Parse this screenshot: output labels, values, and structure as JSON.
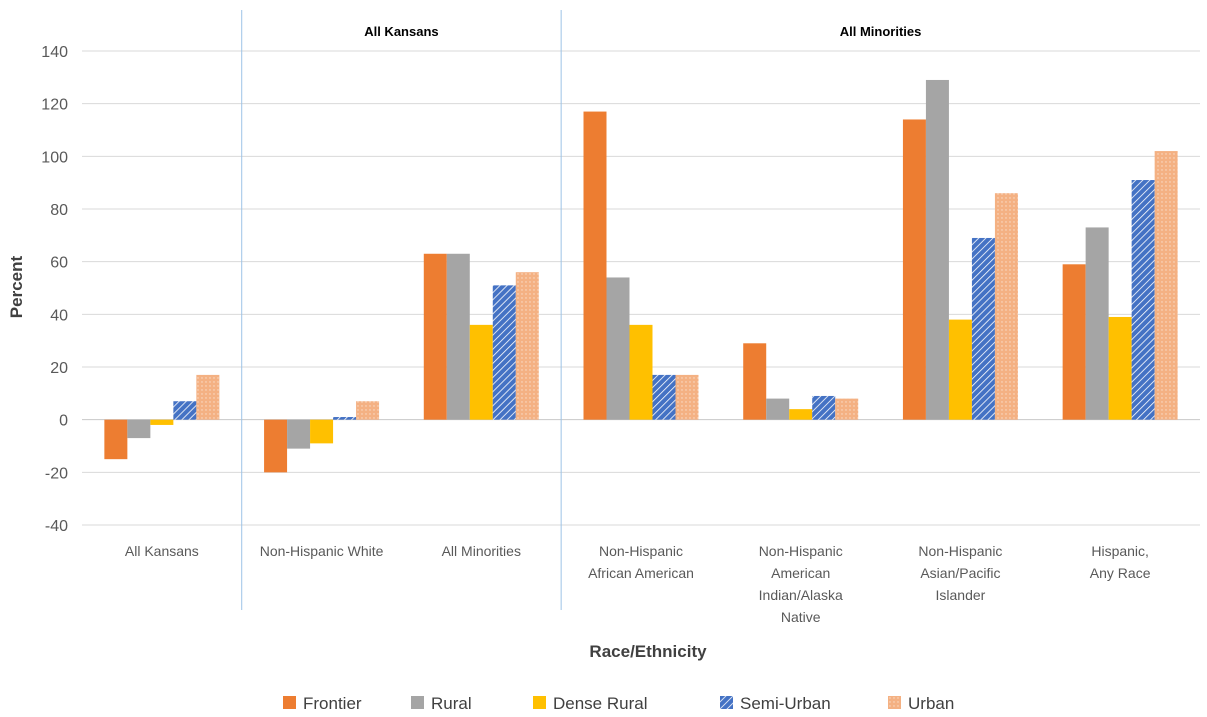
{
  "chart_data": {
    "type": "bar",
    "ylabel": "Percent",
    "xlabel": "Race/Ethnicity",
    "ylim": [
      -40,
      140
    ],
    "yticks": [
      -40,
      -20,
      0,
      20,
      40,
      60,
      80,
      100,
      120,
      140
    ],
    "grid": true,
    "legend_position": "bottom",
    "group_labels": [
      {
        "label": "All Kansans",
        "span": [
          1,
          2
        ]
      },
      {
        "label": "All Minorities",
        "span": [
          3,
          6
        ]
      }
    ],
    "categories": [
      [
        "All Kansans"
      ],
      [
        "Non-Hispanic White"
      ],
      [
        "All Minorities"
      ],
      [
        "Non-Hispanic",
        "African American"
      ],
      [
        "Non-Hispanic",
        "American",
        "Indian/Alaska",
        "Native"
      ],
      [
        "Non-Hispanic",
        "Asian/Pacific",
        "Islander"
      ],
      [
        "Hispanic,",
        "Any Race"
      ]
    ],
    "series": [
      {
        "name": "Frontier",
        "color": "#ED7D31",
        "pattern": "solid",
        "values": [
          -15,
          -20,
          63,
          117,
          29,
          114,
          59
        ]
      },
      {
        "name": "Rural",
        "color": "#A5A5A5",
        "pattern": "solid",
        "values": [
          -7,
          -11,
          63,
          54,
          8,
          129,
          73
        ]
      },
      {
        "name": "Dense Rural",
        "color": "#FFC000",
        "pattern": "solid",
        "values": [
          -2,
          -9,
          36,
          36,
          4,
          38,
          39
        ]
      },
      {
        "name": "Semi-Urban",
        "color": "#4472C4",
        "pattern": "hatch",
        "values": [
          7,
          1,
          51,
          17,
          9,
          69,
          91
        ]
      },
      {
        "name": "Urban",
        "color": "#F4B183",
        "pattern": "dots",
        "values": [
          17,
          7,
          56,
          17,
          8,
          86,
          102
        ]
      }
    ]
  }
}
